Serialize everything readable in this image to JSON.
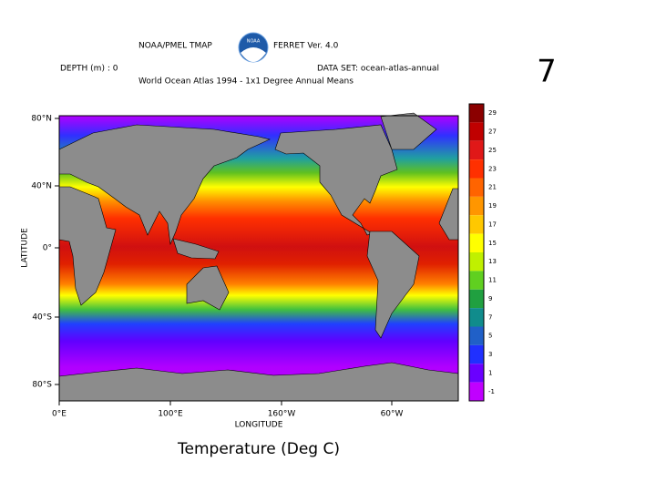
{
  "header": {
    "title_left": "NOAA/PMEL TMAP",
    "title_right": "FERRET Ver. 4.0",
    "depth": "DEPTH (m) : 0",
    "dataset": "DATA SET: ocean-atlas-annual",
    "subtitle": "World Ocean Atlas 1994 - 1x1 Degree Annual Means",
    "logo": "NOAA"
  },
  "map": {
    "y_label": "LATITUDE",
    "x_label": "LONGITUDE",
    "lat_labels": [
      "80°N",
      "40°N",
      "0°",
      "40°S",
      "80°S"
    ],
    "lon_labels": [
      "0°E",
      "100°E",
      "160°W",
      "60°W"
    ]
  },
  "colorbar": {
    "labels": [
      29,
      27,
      25,
      23,
      21,
      19,
      17,
      15,
      13,
      11,
      9,
      7,
      5,
      3,
      1,
      -1
    ],
    "colors": [
      "#8b0000",
      "#c00000",
      "#e01818",
      "#ff3000",
      "#ff6400",
      "#ff9600",
      "#ffc800",
      "#ffff00",
      "#c0f000",
      "#60d020",
      "#20a040",
      "#108c8c",
      "#2060c8",
      "#2030ff",
      "#6a00ff",
      "#c000ff"
    ]
  },
  "caption": "Temperature (Deg C)",
  "slide_number": "7"
}
